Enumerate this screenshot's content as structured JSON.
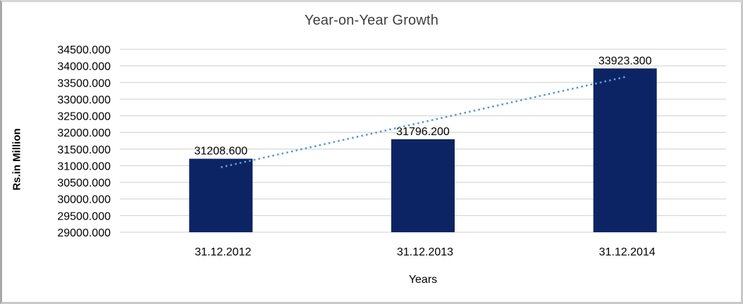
{
  "chart": {
    "title": "Year-on-Year Growth",
    "xlabel": "Years",
    "ylabel": "Rs.in Million"
  },
  "chart_data": {
    "type": "bar",
    "title": "Year-on-Year Growth",
    "xlabel": "Years",
    "ylabel": "Rs.in Million",
    "categories": [
      "31.12.2012",
      "31.12.2013",
      "31.12.2014"
    ],
    "values": [
      31208.6,
      31796.2,
      33923.3
    ],
    "data_labels": [
      "31208.600",
      "31796.200",
      "33923.300"
    ],
    "ytick_labels": [
      "34500.000",
      "34000.000",
      "33500.000",
      "33000.000",
      "32500.000",
      "32000.000",
      "31500.000",
      "31000.000",
      "30500.000",
      "30000.000",
      "29500.000",
      "29000.000"
    ],
    "ylim": [
      29000,
      34500
    ],
    "ytick_step": 500,
    "grid": true,
    "legend": "none",
    "colors": {
      "bar": "#0d2464",
      "trendline": "#5b9bd5",
      "gridline": "#d9d9d9",
      "tick_text": "#000000",
      "title_text": "#3f3f3f"
    },
    "trendline": {
      "type": "linear",
      "style": "dotted"
    }
  }
}
